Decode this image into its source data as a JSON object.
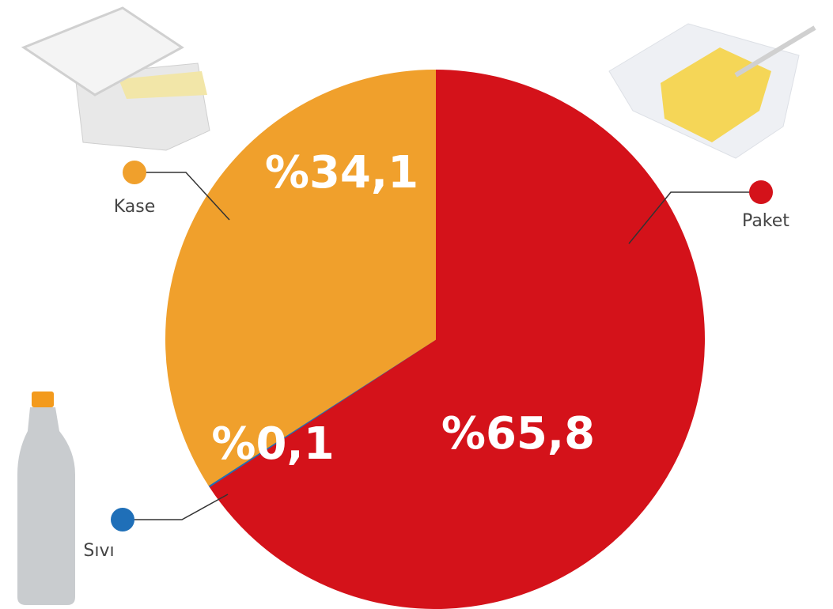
{
  "chart_data": {
    "type": "pie",
    "categories": [
      "Paket",
      "Sıvı",
      "Kase"
    ],
    "values": [
      65.8,
      0.1,
      34.1
    ],
    "value_labels": [
      "%65,8",
      "%0,1",
      "%34,1"
    ],
    "colors": [
      "#d4121a",
      "#1f6fb8",
      "#f0a02c"
    ]
  }
}
